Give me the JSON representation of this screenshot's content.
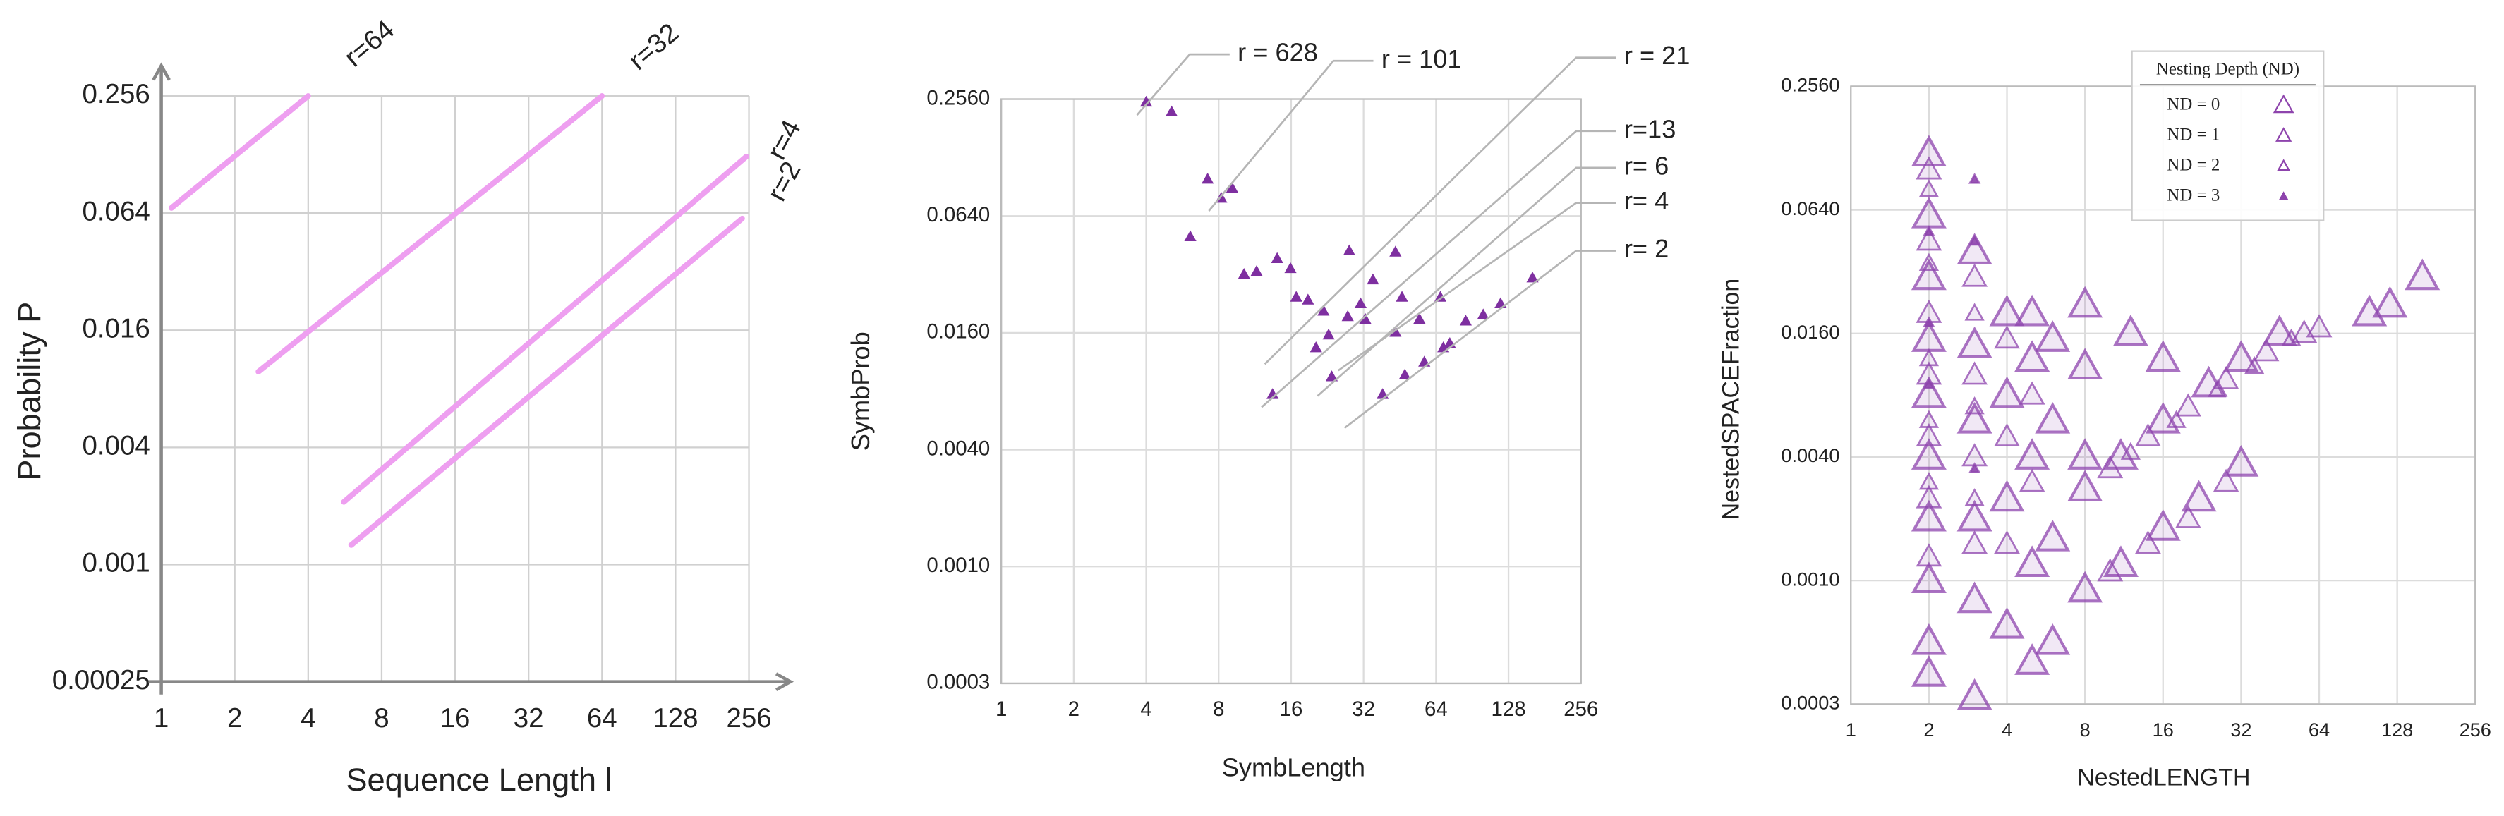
{
  "chart_data": [
    {
      "type": "line",
      "y_label": "Probability P",
      "x_label": "Sequence Length l",
      "xscale": "log",
      "yscale": "log",
      "grid": true,
      "xlim": [
        1,
        256
      ],
      "xticks": [
        1,
        2,
        4,
        8,
        16,
        32,
        64,
        128,
        256
      ],
      "ylim": [
        0.00025,
        0.256
      ],
      "yticks": [
        0.00025,
        0.001,
        0.004,
        0.016,
        0.064,
        0.256
      ],
      "series": [
        {
          "name": "r=64",
          "color": "#ee9ff0",
          "x": [
            1.1,
            4
          ],
          "values": [
            0.068,
            0.256
          ]
        },
        {
          "name": "r=32",
          "color": "#ee9ff0",
          "x": [
            2.5,
            64
          ],
          "values": [
            0.0098,
            0.256
          ]
        },
        {
          "name": "r=4",
          "color": "#ee9ff0",
          "x": [
            5.6,
            250
          ],
          "values": [
            0.0021,
            0.125
          ]
        },
        {
          "name": "r=2",
          "color": "#ee9ff0",
          "x": [
            6,
            240
          ],
          "values": [
            0.00126,
            0.06
          ]
        }
      ]
    },
    {
      "type": "scatter",
      "y_label": "SymbProb",
      "x_label": "SymbLength",
      "xscale": "log",
      "yscale": "log",
      "grid": true,
      "color": "#7e2fa0",
      "xlim": [
        1,
        256
      ],
      "xticks": [
        1,
        2,
        4,
        8,
        16,
        32,
        64,
        128,
        256
      ],
      "ylim": [
        0.00025,
        0.256
      ],
      "yticks": [
        {
          "value": 0.00025,
          "label": "0.0003"
        },
        {
          "value": 0.001,
          "label": "0.0010"
        },
        {
          "value": 0.004,
          "label": "0.0040"
        },
        {
          "value": 0.016,
          "label": "0.0160"
        },
        {
          "value": 0.064,
          "label": "0.0640"
        },
        {
          "value": 0.256,
          "label": "0.2560"
        }
      ],
      "x": [
        4.0,
        5.1,
        7.2,
        8.2,
        9.1,
        6.1,
        10.2,
        14.0,
        15.9,
        16.8,
        21.8,
        27.9,
        43.4,
        35.0,
        32.5,
        46.2,
        22.9,
        27.5,
        54.6,
        66.7,
        85,
        43.4,
        20.3,
        23.6,
        38.4,
        47.5,
        57.2,
        68.6,
        73,
        100.5,
        118.6,
        161,
        13.4,
        11.5,
        18.8,
        31.1
      ],
      "values": [
        0.247,
        0.22,
        0.099,
        0.079,
        0.089,
        0.05,
        0.032,
        0.0386,
        0.0343,
        0.0244,
        0.0207,
        0.0423,
        0.0417,
        0.03,
        0.0188,
        0.0244,
        0.0156,
        0.0194,
        0.0188,
        0.0244,
        0.0184,
        0.0161,
        0.0134,
        0.0095,
        0.0077,
        0.0097,
        0.0113,
        0.0134,
        0.0141,
        0.0198,
        0.0226,
        0.0307,
        0.0077,
        0.0331,
        0.0236,
        0.0226
      ],
      "annotations": [
        "r = 628",
        "r = 101",
        "r = 21",
        "r=13",
        "r= 6",
        "r= 4",
        "r= 2"
      ]
    },
    {
      "type": "scatter",
      "y_label": "NestedSPACEFraction",
      "x_label": "NestedLENGTH",
      "xscale": "log",
      "yscale": "log",
      "grid": true,
      "legend_title": "Nesting Depth (ND)",
      "xlim": [
        1,
        256
      ],
      "xticks": [
        1,
        2,
        4,
        8,
        16,
        32,
        64,
        128,
        256
      ],
      "ylim": [
        0.00025,
        0.256
      ],
      "yticks": [
        {
          "value": 0.00025,
          "label": "0.0003"
        },
        {
          "value": 0.001,
          "label": "0.0010"
        },
        {
          "value": 0.004,
          "label": "0.0040"
        },
        {
          "value": 0.016,
          "label": "0.0160"
        },
        {
          "value": 0.064,
          "label": "0.0640"
        },
        {
          "value": 0.256,
          "label": "0.2560"
        }
      ],
      "series": [
        {
          "name": "ND = 0",
          "color": "#8e44ad",
          "x": [
            2,
            2,
            2,
            2,
            2,
            2,
            2,
            2,
            2,
            2,
            3,
            3,
            3,
            3,
            3,
            3,
            4,
            4,
            4,
            4,
            5,
            5,
            5,
            5,
            5,
            6,
            6,
            6,
            6,
            8,
            8,
            8,
            8,
            11,
            16,
            22,
            32,
            8,
            11,
            16,
            24,
            32,
            45,
            100,
            120,
            160,
            16,
            12
          ],
          "values": [
            0.12,
            0.06,
            0.03,
            0.015,
            0.008,
            0.004,
            0.002,
            0.001,
            0.0005,
            0.00035,
            0.00027,
            0.0008,
            0.002,
            0.006,
            0.014,
            0.04,
            0.0006,
            0.0025,
            0.008,
            0.02,
            0.0004,
            0.0012,
            0.004,
            0.012,
            0.02,
            0.0005,
            0.0016,
            0.006,
            0.015,
            0.022,
            0.011,
            0.004,
            0.0009,
            0.0012,
            0.0018,
            0.0025,
            0.0037,
            0.0028,
            0.004,
            0.006,
            0.009,
            0.012,
            0.016,
            0.02,
            0.022,
            0.03,
            0.012,
            0.016
          ]
        },
        {
          "name": "ND = 1",
          "color": "#8e44ad",
          "x": [
            2,
            2,
            2,
            2,
            2,
            2,
            2,
            3,
            3,
            3,
            3,
            4,
            4,
            4,
            5,
            5,
            10,
            14,
            20,
            28,
            40,
            56,
            64,
            10,
            14,
            20,
            28
          ],
          "values": [
            0.1,
            0.045,
            0.02,
            0.01,
            0.005,
            0.0025,
            0.0013,
            0.03,
            0.01,
            0.004,
            0.0015,
            0.015,
            0.005,
            0.0015,
            0.008,
            0.003,
            0.0035,
            0.005,
            0.007,
            0.0095,
            0.013,
            0.016,
            0.017,
            0.0011,
            0.0015,
            0.002,
            0.003
          ]
        },
        {
          "name": "ND = 2",
          "color": "#8e44ad",
          "x": [
            2,
            2,
            2,
            2,
            2,
            3,
            3,
            3,
            12,
            18,
            26,
            36,
            50
          ],
          "values": [
            0.08,
            0.035,
            0.012,
            0.006,
            0.003,
            0.02,
            0.007,
            0.0025,
            0.0042,
            0.006,
            0.0085,
            0.011,
            0.015
          ]
        },
        {
          "name": "ND = 3",
          "color": "#8e44ad",
          "x": [
            2,
            2,
            2,
            3,
            3,
            3
          ],
          "values": [
            0.05,
            0.018,
            0.009,
            0.09,
            0.045,
            0.0035
          ]
        }
      ]
    }
  ]
}
